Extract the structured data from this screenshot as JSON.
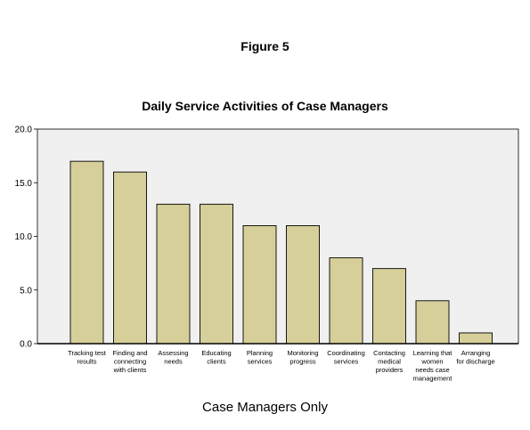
{
  "figure_label": "Figure 5",
  "colors": {
    "plot_background": "#f0f0f0",
    "bar_fill": "#d6cf9a",
    "bar_stroke": "#000000"
  },
  "chart_data": {
    "type": "bar",
    "title": "Daily Service Activities of Case Managers",
    "xlabel": "Case Managers Only",
    "ylabel": "",
    "ylim": [
      0,
      20
    ],
    "yticks": [
      "0.0",
      "5.0",
      "10.0",
      "15.0",
      "20.0"
    ],
    "grid": false,
    "categories": [
      "Tracking test results",
      "Finding and connecting with clients",
      "Assessing needs",
      "Educating clients",
      "Planning services",
      "Monitoring progress",
      "Coordinating services",
      "Contacting medical providers",
      "Learning that women needs case management",
      "Arranging for discharge"
    ],
    "category_lines": [
      [
        "Tracking test",
        "results"
      ],
      [
        "Finding and",
        "connecting",
        "with clients"
      ],
      [
        "Assessing",
        "needs"
      ],
      [
        "Educating",
        "clients"
      ],
      [
        "Planning",
        "services"
      ],
      [
        "Monitoring",
        "progress"
      ],
      [
        "Coordinating",
        "services"
      ],
      [
        "Contacting",
        "medical",
        "providers"
      ],
      [
        "Learning that",
        "women",
        "needs case",
        "management"
      ],
      [
        "Arranging",
        "for discharge"
      ]
    ],
    "values": [
      17,
      16,
      13,
      13,
      11,
      11,
      8,
      7,
      4,
      1
    ]
  }
}
